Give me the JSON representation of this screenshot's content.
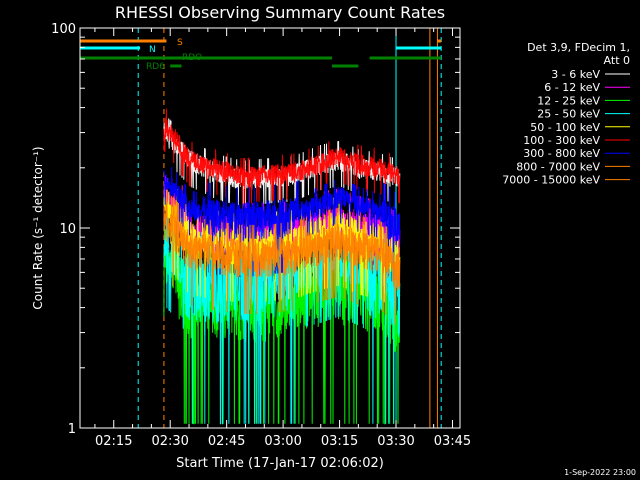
{
  "chart_data": {
    "type": "line",
    "title": "RHESSI Observing Summary Count Rates",
    "xlabel": "Start Time (17-Jan-17 02:06:02)",
    "ylabel": "Count Rate (s⁻¹ detector⁻¹)",
    "y_scale": "log",
    "ylim": [
      1,
      100
    ],
    "xlim": [
      "02:06:02",
      "03:47:00"
    ],
    "x_ticks": [
      "02:15",
      "02:30",
      "02:45",
      "03:00",
      "03:15",
      "03:30",
      "03:45"
    ],
    "y_ticks": [
      "1",
      "10",
      "100"
    ],
    "data_start": "02:28:20",
    "data_end": "03:31:00",
    "legend_header": [
      "Det 3,9, FDecim 1,",
      "Att 0"
    ],
    "series": [
      {
        "name": "3 - 6 keV",
        "color": "#ffffff",
        "values": [
          30,
          22,
          19,
          17.5,
          18,
          18.5,
          21,
          22,
          20,
          19,
          17.5
        ]
      },
      {
        "name": "6 - 12 keV",
        "color": "#ff00ff",
        "values": [
          15,
          10,
          9.5,
          9.3,
          9.2,
          9.5,
          10.5,
          11,
          10,
          9.5,
          8
        ]
      },
      {
        "name": "12 - 25 keV",
        "color": "#00ff00",
        "values": [
          7,
          4.5,
          4.2,
          4.3,
          4.3,
          4.8,
          5,
          5.3,
          5,
          4.7,
          3.5
        ]
      },
      {
        "name": "25 - 50 keV",
        "color": "#00ffff",
        "values": [
          8,
          5.5,
          5.3,
          5.5,
          5.6,
          6,
          6.5,
          7,
          6.3,
          5.5,
          4.5
        ]
      },
      {
        "name": "50 - 100 keV",
        "color": "#ffff00",
        "values": [
          13,
          9,
          8.5,
          8.2,
          8.3,
          8.6,
          9.5,
          10,
          9,
          8.5,
          7
        ]
      },
      {
        "name": "100 - 300 keV",
        "color": "#ff0000",
        "values": [
          33,
          22,
          20,
          18,
          18.5,
          19,
          21,
          23,
          21,
          20,
          18
        ]
      },
      {
        "name": "300 - 800 keV",
        "color": "#0000ff",
        "values": [
          18,
          12.5,
          11.5,
          11,
          11.3,
          11.8,
          13,
          14.5,
          13,
          12,
          10
        ]
      },
      {
        "name": "800 - 7000 keV",
        "color": "#ff8000",
        "values": [
          11,
          8,
          7.5,
          7.2,
          7.2,
          7.5,
          8.3,
          8.8,
          8,
          7.5,
          6
        ]
      },
      {
        "name": "7000 - 15000 keV",
        "color": "#ff8000",
        "values": [
          0,
          0,
          0,
          0,
          0,
          0,
          0,
          0,
          0,
          0,
          0
        ]
      }
    ],
    "sample_times": [
      "02:28:20",
      "02:35",
      "02:42",
      "02:49",
      "02:56",
      "03:03",
      "03:10",
      "03:15",
      "03:20",
      "03:26",
      "03:31"
    ],
    "flag_bars": [
      {
        "label": "S",
        "color": "#ff8000",
        "segments": [
          [
            "02:06:02",
            "02:29"
          ],
          [
            "03:41",
            "03:42"
          ]
        ]
      },
      {
        "label": "N",
        "color": "#00ffff",
        "segments": [
          [
            "02:06:02",
            "02:22"
          ],
          [
            "03:30",
            "03:42"
          ]
        ]
      },
      {
        "label": "RDO",
        "color": "#008000",
        "segments": [
          [
            "02:06:02",
            "03:13"
          ],
          [
            "03:23",
            "03:42"
          ]
        ]
      },
      {
        "label": "RD6",
        "color": "#008000",
        "segments": [
          [
            "02:30",
            "02:33"
          ],
          [
            "03:13",
            "03:20"
          ]
        ]
      }
    ],
    "vertical_lines": [
      {
        "time": "02:06:02",
        "color": "#00ffff",
        "style": "solid"
      },
      {
        "time": "02:21:30",
        "color": "#00ffff",
        "style": "dashed"
      },
      {
        "time": "02:28:20",
        "color": "#ff8000",
        "style": "dashed"
      },
      {
        "time": "03:30",
        "color": "#00ffff",
        "style": "solid"
      },
      {
        "time": "03:39",
        "color": "#ff8000",
        "style": "solid"
      },
      {
        "time": "03:41",
        "color": "#ff8000",
        "style": "solid"
      },
      {
        "time": "03:42",
        "color": "#00ffff",
        "style": "dashed"
      }
    ],
    "footer": "1-Sep-2022 23:00"
  }
}
